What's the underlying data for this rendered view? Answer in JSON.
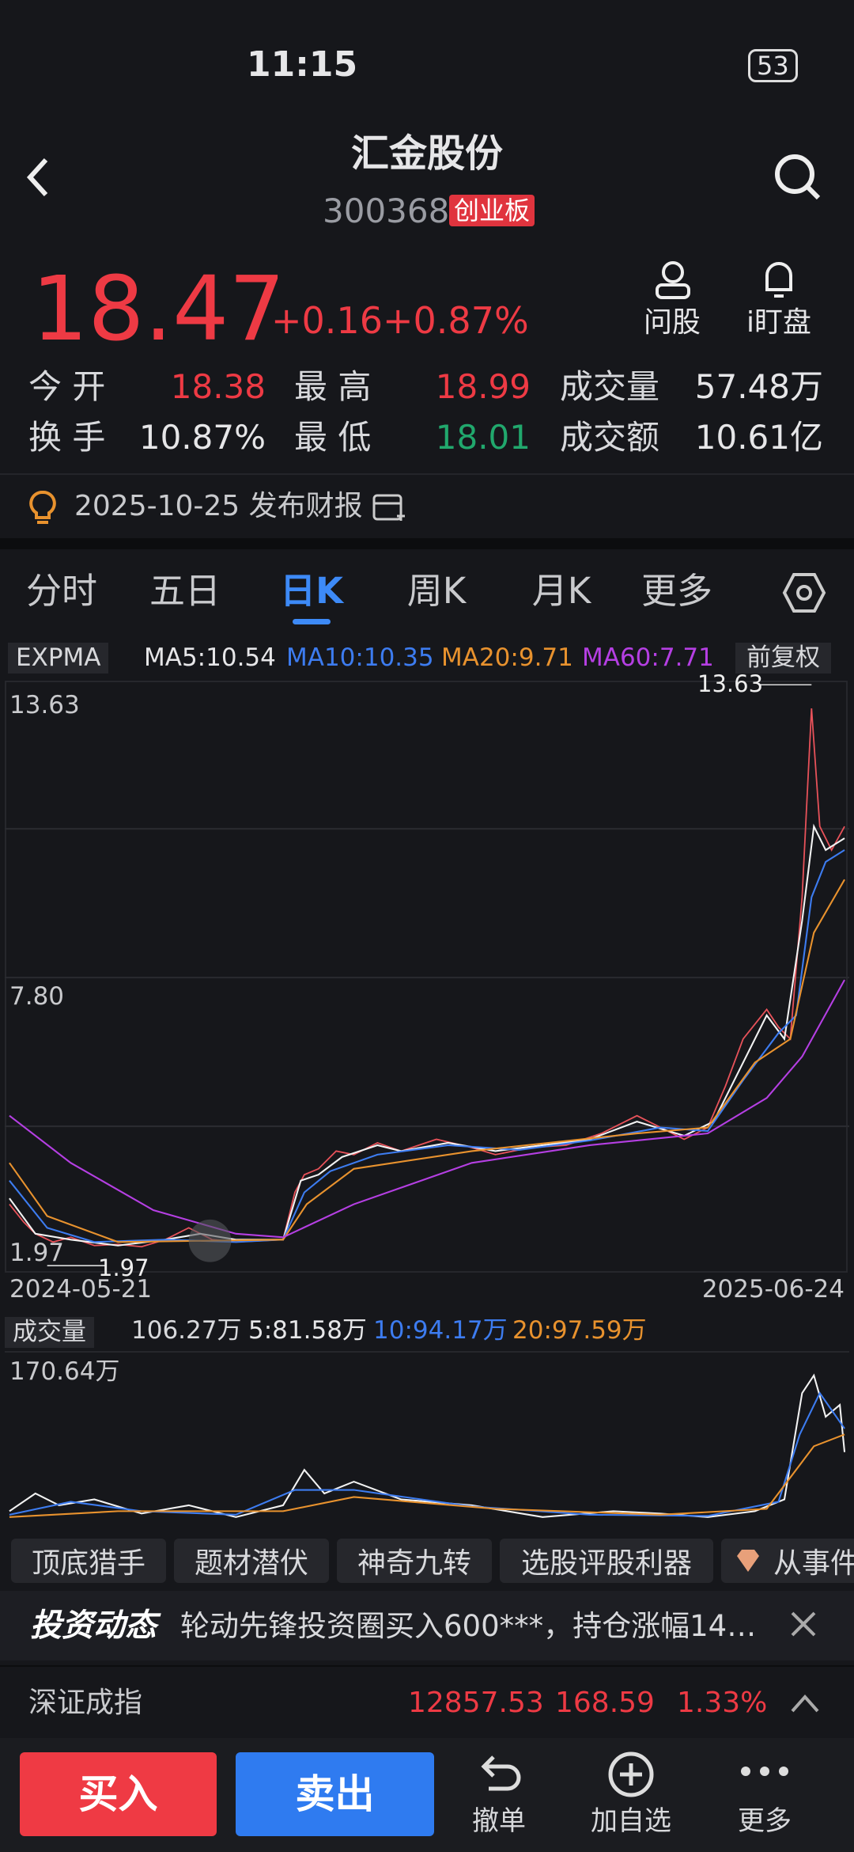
{
  "status_bar": {
    "time": "11:15",
    "battery": "53"
  },
  "header": {
    "title": "汇金股份",
    "code": "300368",
    "board": "创业板"
  },
  "quote": {
    "price": "18.47",
    "change": "+0.16",
    "change_pct": "+0.87%",
    "actions": [
      "问股",
      "i盯盘"
    ]
  },
  "stats": [
    [
      {
        "label": "今 开",
        "value": "18.38"
      },
      {
        "label": "最 高",
        "value": "18.99"
      },
      {
        "label": "成交量",
        "value": "57.48万"
      }
    ],
    [
      {
        "label": "换 手",
        "value": "10.87%"
      },
      {
        "label": "最 低",
        "value": "18.01"
      },
      {
        "label": "成交额",
        "value": "10.61亿"
      }
    ]
  ],
  "report": "2025-10-25 发布财报",
  "tabs": [
    "分时",
    "五日",
    "日K",
    "周K",
    "月K",
    "更多"
  ],
  "indicators": {
    "main": "EXPMA",
    "ma": [
      "MA5:10.54",
      "MA10:10.35",
      "MA20:9.71",
      "MA60:7.71"
    ],
    "adjust": "前复权"
  },
  "price_chart": {
    "high_label": "13.63",
    "mid_label": "7.80",
    "low_label": "1.97",
    "max_marker": "13.63",
    "min_marker": "1.97",
    "start_date": "2024-05-21",
    "end_date": "2025-06-24"
  },
  "volume": {
    "label": "成交量",
    "items": [
      "106.27万",
      "5:81.58万",
      "10:94.17万",
      "20:97.59万"
    ],
    "max_label": "170.64万"
  },
  "chips": [
    "顶底猎手",
    "题材潜伏",
    "神奇九转",
    "选股评股利器",
    "从事件"
  ],
  "news": {
    "brand": "投资动态",
    "text": "轮动先锋投资圈买入600***，持仓涨幅14…"
  },
  "index": {
    "name": "深证成指",
    "value": "12857.53",
    "change": "168.59",
    "pct": "1.33%"
  },
  "bottom_bar": {
    "buy": "买入",
    "sell": "卖出",
    "actions": [
      "撤单",
      "加自选",
      "更多"
    ]
  }
}
